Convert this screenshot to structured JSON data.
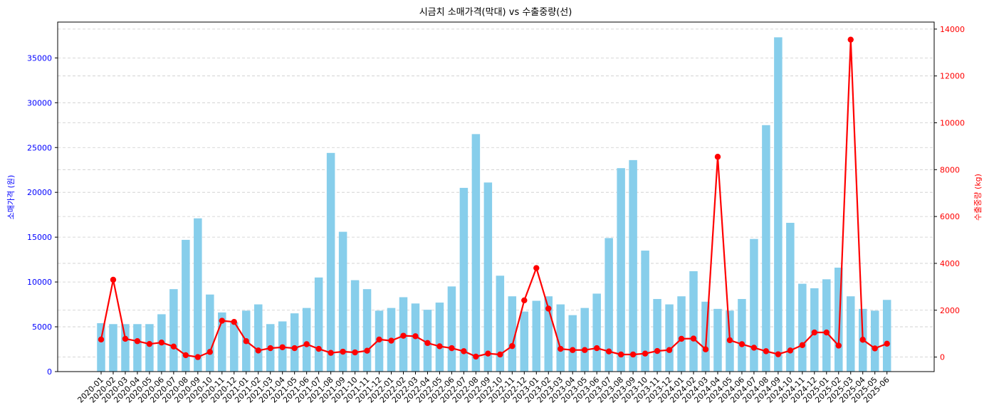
{
  "chart_data": {
    "type": "bar+line",
    "title": "시금치 소매가격(막대) vs 수출중량(선)",
    "ylabel_left": "소매가격 (원)",
    "ylabel_right": "수출중량 (kg)",
    "ylim_left": [
      0,
      39000
    ],
    "ylim_right": [
      -620,
      14300
    ],
    "yticks_left": [
      0,
      5000,
      10000,
      15000,
      20000,
      25000,
      30000,
      35000
    ],
    "yticks_right": [
      0,
      2000,
      4000,
      6000,
      8000,
      10000,
      12000,
      14000
    ],
    "grid": "horizontal dashed",
    "bar_color": "#87CEEB",
    "line_color": "#FF0000",
    "left_axis_color": "#0000FF",
    "right_axis_color": "#FF0000",
    "categories": [
      "2020-01",
      "2020-02",
      "2020-03",
      "2020-04",
      "2020-05",
      "2020-06",
      "2020-07",
      "2020-08",
      "2020-09",
      "2020-10",
      "2020-11",
      "2020-12",
      "2021-01",
      "2021-02",
      "2021-03",
      "2021-04",
      "2021-05",
      "2021-06",
      "2021-07",
      "2021-08",
      "2021-09",
      "2021-10",
      "2021-11",
      "2021-12",
      "2022-01",
      "2022-02",
      "2022-03",
      "2022-04",
      "2022-05",
      "2022-06",
      "2022-07",
      "2022-08",
      "2022-09",
      "2022-10",
      "2022-11",
      "2022-12",
      "2023-01",
      "2023-02",
      "2023-03",
      "2023-04",
      "2023-05",
      "2023-06",
      "2023-07",
      "2023-08",
      "2023-09",
      "2023-10",
      "2023-11",
      "2023-12",
      "2024-01",
      "2024-02",
      "2024-03",
      "2024-04",
      "2024-05",
      "2024-06",
      "2024-07",
      "2024-08",
      "2024-09",
      "2024-10",
      "2024-11",
      "2024-12",
      "2025-01",
      "2025-02",
      "2025-03",
      "2025-04",
      "2025-05",
      "2025-06"
    ],
    "series": [
      {
        "type": "bar",
        "axis": "left",
        "values": [
          5400,
          5300,
          5300,
          5300,
          5300,
          6400,
          9200,
          14700,
          17100,
          8600,
          6600,
          5500,
          6800,
          7500,
          5300,
          5600,
          6500,
          7100,
          10500,
          24400,
          15600,
          10200,
          9200,
          6800,
          7100,
          8300,
          7600,
          6900,
          7700,
          9500,
          20500,
          26500,
          21100,
          10700,
          8400,
          6700,
          7900,
          8400,
          7500,
          6300,
          7100,
          8700,
          14900,
          22700,
          23600,
          13500,
          8100,
          7500,
          8400,
          11200,
          7800,
          7000,
          6800,
          8100,
          14800,
          27500,
          37300,
          16600,
          9800,
          9300,
          10300,
          11600,
          8400,
          7000,
          6800,
          8000
        ]
      },
      {
        "type": "line",
        "axis": "right",
        "values": [
          750,
          3300,
          780,
          680,
          560,
          620,
          450,
          80,
          0,
          220,
          1550,
          1500,
          680,
          280,
          380,
          420,
          380,
          550,
          350,
          180,
          230,
          200,
          270,
          750,
          700,
          910,
          890,
          600,
          460,
          380,
          250,
          20,
          150,
          110,
          470,
          2420,
          3800,
          2070,
          350,
          300,
          300,
          380,
          240,
          110,
          110,
          150,
          260,
          300,
          780,
          790,
          330,
          8550,
          720,
          550,
          400,
          250,
          120,
          280,
          510,
          1050,
          1050,
          490,
          13550,
          740,
          370,
          570
        ]
      }
    ]
  }
}
